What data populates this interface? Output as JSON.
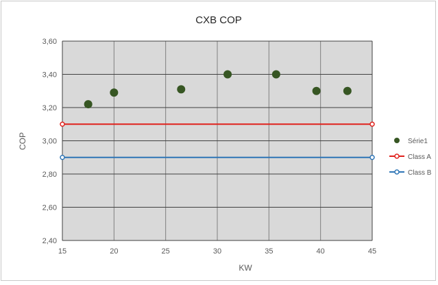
{
  "chart_data": {
    "type": "scatter",
    "title": "CXB COP",
    "xlabel": "KW",
    "ylabel": "COP",
    "xlim": [
      15,
      45
    ],
    "ylim": [
      2.4,
      3.6
    ],
    "x_ticks": [
      "15",
      "20",
      "25",
      "30",
      "35",
      "40",
      "45"
    ],
    "y_ticks": [
      "2,40",
      "2,60",
      "2,80",
      "3,00",
      "3,20",
      "3,40",
      "3,60"
    ],
    "x_tick_values": [
      15,
      20,
      25,
      30,
      35,
      40,
      45
    ],
    "y_tick_values": [
      2.4,
      2.6,
      2.8,
      3.0,
      3.2,
      3.4,
      3.6
    ],
    "grid": "vertical and horizontal major gridlines",
    "plot_background": "#d9d9d9",
    "legend_position": "right",
    "series": [
      {
        "name": "Série1",
        "kind": "points",
        "color": "#375623",
        "x": [
          17.5,
          20.0,
          26.5,
          31.0,
          35.7,
          39.6,
          42.6
        ],
        "y": [
          3.22,
          3.29,
          3.31,
          3.4,
          3.4,
          3.3,
          3.3
        ]
      },
      {
        "name": "Class A",
        "kind": "line",
        "color": "#e0201b",
        "x": [
          15,
          45
        ],
        "y": [
          3.1,
          3.1
        ]
      },
      {
        "name": "Class B",
        "kind": "line",
        "color": "#2e75b6",
        "x": [
          15,
          45
        ],
        "y": [
          2.9,
          2.9
        ]
      }
    ]
  }
}
